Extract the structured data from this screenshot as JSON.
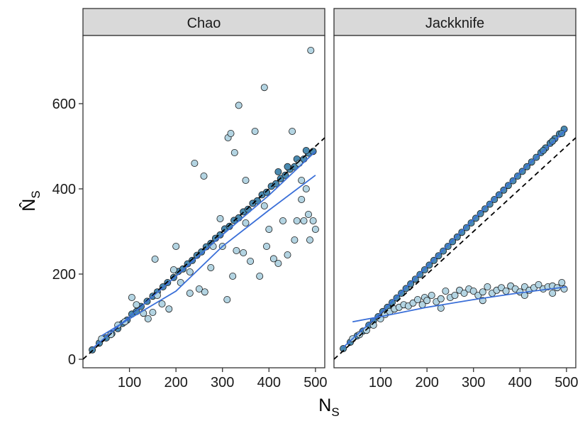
{
  "chart_data": {
    "type": "scatter",
    "panels": [
      "Chao",
      "Jackknife"
    ],
    "xlabel": "N",
    "xlabel_sub": "S",
    "ylabel": "N̂",
    "ylabel_sub": "S",
    "x_ticks": [
      100,
      200,
      300,
      400,
      500
    ],
    "y_ticks": [
      0,
      200,
      400,
      600
    ],
    "xlim": [
      0,
      520
    ],
    "ylim": [
      -20,
      760
    ],
    "reference_line": {
      "slope": 1,
      "intercept": 0,
      "style": "dashed",
      "color": "#000000"
    },
    "colors": {
      "light": "#b3d4e2",
      "dark": "#4a8ab0",
      "fit": "#3a6fd8",
      "outline": "#1a1a1a",
      "strip": "#d9d9d9"
    },
    "series": [
      {
        "panel": "Chao",
        "shade": "dark",
        "points": [
          [
            20,
            22
          ],
          [
            35,
            38
          ],
          [
            50,
            50
          ],
          [
            62,
            60
          ],
          [
            75,
            72
          ],
          [
            85,
            84
          ],
          [
            95,
            92
          ],
          [
            105,
            106
          ],
          [
            115,
            112
          ],
          [
            125,
            124
          ],
          [
            138,
            136
          ],
          [
            150,
            148
          ],
          [
            160,
            158
          ],
          [
            172,
            170
          ],
          [
            182,
            180
          ],
          [
            195,
            192
          ],
          [
            205,
            206
          ],
          [
            215,
            212
          ],
          [
            225,
            224
          ],
          [
            235,
            232
          ],
          [
            245,
            244
          ],
          [
            255,
            252
          ],
          [
            265,
            264
          ],
          [
            275,
            272
          ],
          [
            285,
            284
          ],
          [
            295,
            292
          ],
          [
            305,
            306
          ],
          [
            315,
            312
          ],
          [
            325,
            326
          ],
          [
            335,
            332
          ],
          [
            345,
            346
          ],
          [
            355,
            352
          ],
          [
            365,
            366
          ],
          [
            375,
            372
          ],
          [
            385,
            386
          ],
          [
            395,
            392
          ],
          [
            405,
            406
          ],
          [
            415,
            412
          ],
          [
            425,
            424
          ],
          [
            435,
            432
          ],
          [
            445,
            446
          ],
          [
            455,
            452
          ],
          [
            465,
            466
          ],
          [
            475,
            470
          ],
          [
            485,
            484
          ],
          [
            495,
            488
          ],
          [
            420,
            440
          ],
          [
            440,
            452
          ],
          [
            460,
            470
          ],
          [
            480,
            490
          ]
        ],
        "fit": [
          [
            20,
            25
          ],
          [
            100,
            100
          ],
          [
            200,
            195
          ],
          [
            300,
            292
          ],
          [
            400,
            385
          ],
          [
            500,
            488
          ]
        ]
      },
      {
        "panel": "Chao",
        "shade": "light",
        "points": [
          [
            40,
            48
          ],
          [
            60,
            58
          ],
          [
            75,
            80
          ],
          [
            90,
            88
          ],
          [
            105,
            145
          ],
          [
            115,
            128
          ],
          [
            130,
            108
          ],
          [
            140,
            95
          ],
          [
            150,
            110
          ],
          [
            155,
            235
          ],
          [
            170,
            130
          ],
          [
            185,
            118
          ],
          [
            195,
            210
          ],
          [
            200,
            265
          ],
          [
            210,
            180
          ],
          [
            230,
            155
          ],
          [
            240,
            460
          ],
          [
            250,
            165
          ],
          [
            260,
            430
          ],
          [
            262,
            158
          ],
          [
            275,
            215
          ],
          [
            280,
            265
          ],
          [
            295,
            330
          ],
          [
            300,
            265
          ],
          [
            310,
            140
          ],
          [
            312,
            520
          ],
          [
            318,
            530
          ],
          [
            322,
            195
          ],
          [
            326,
            485
          ],
          [
            330,
            255
          ],
          [
            335,
            596
          ],
          [
            345,
            250
          ],
          [
            350,
            320
          ],
          [
            360,
            230
          ],
          [
            370,
            535
          ],
          [
            380,
            195
          ],
          [
            390,
            638
          ],
          [
            395,
            265
          ],
          [
            400,
            305
          ],
          [
            410,
            236
          ],
          [
            420,
            225
          ],
          [
            430,
            325
          ],
          [
            440,
            245
          ],
          [
            450,
            535
          ],
          [
            455,
            280
          ],
          [
            460,
            325
          ],
          [
            465,
            460
          ],
          [
            470,
            375
          ],
          [
            475,
            325
          ],
          [
            480,
            400
          ],
          [
            485,
            340
          ],
          [
            490,
            725
          ],
          [
            495,
            325
          ],
          [
            500,
            305
          ],
          [
            488,
            280
          ],
          [
            470,
            420
          ],
          [
            350,
            420
          ],
          [
            390,
            360
          ],
          [
            230,
            205
          ],
          [
            160,
            150
          ]
        ],
        "fit": [
          [
            40,
            55
          ],
          [
            100,
            95
          ],
          [
            200,
            160
          ],
          [
            300,
            265
          ],
          [
            400,
            350
          ],
          [
            500,
            432
          ]
        ]
      },
      {
        "panel": "Jackknife",
        "shade": "dark",
        "points": [
          [
            20,
            25
          ],
          [
            35,
            40
          ],
          [
            50,
            55
          ],
          [
            62,
            66
          ],
          [
            75,
            80
          ],
          [
            85,
            90
          ],
          [
            95,
            100
          ],
          [
            105,
            112
          ],
          [
            115,
            122
          ],
          [
            125,
            133
          ],
          [
            135,
            144
          ],
          [
            145,
            155
          ],
          [
            155,
            166
          ],
          [
            165,
            177
          ],
          [
            175,
            188
          ],
          [
            185,
            199
          ],
          [
            195,
            210
          ],
          [
            205,
            221
          ],
          [
            215,
            232
          ],
          [
            225,
            243
          ],
          [
            235,
            254
          ],
          [
            245,
            265
          ],
          [
            255,
            276
          ],
          [
            265,
            287
          ],
          [
            275,
            298
          ],
          [
            285,
            309
          ],
          [
            295,
            320
          ],
          [
            305,
            331
          ],
          [
            315,
            342
          ],
          [
            325,
            353
          ],
          [
            335,
            364
          ],
          [
            345,
            375
          ],
          [
            355,
            386
          ],
          [
            365,
            397
          ],
          [
            375,
            408
          ],
          [
            385,
            419
          ],
          [
            395,
            430
          ],
          [
            405,
            441
          ],
          [
            415,
            452
          ],
          [
            425,
            463
          ],
          [
            435,
            474
          ],
          [
            445,
            485
          ],
          [
            455,
            496
          ],
          [
            465,
            507
          ],
          [
            475,
            518
          ],
          [
            485,
            529
          ],
          [
            495,
            540
          ],
          [
            490,
            530
          ],
          [
            470,
            512
          ],
          [
            450,
            490
          ]
        ],
        "fit": [
          [
            20,
            28
          ],
          [
            100,
            108
          ],
          [
            200,
            218
          ],
          [
            300,
            328
          ],
          [
            400,
            438
          ],
          [
            500,
            540
          ]
        ]
      },
      {
        "panel": "Jackknife",
        "shade": "light",
        "points": [
          [
            40,
            48
          ],
          [
            55,
            58
          ],
          [
            70,
            68
          ],
          [
            85,
            80
          ],
          [
            100,
            95
          ],
          [
            110,
            105
          ],
          [
            120,
            112
          ],
          [
            130,
            118
          ],
          [
            140,
            122
          ],
          [
            150,
            128
          ],
          [
            160,
            125
          ],
          [
            170,
            132
          ],
          [
            180,
            140
          ],
          [
            190,
            128
          ],
          [
            195,
            145
          ],
          [
            200,
            138
          ],
          [
            210,
            150
          ],
          [
            220,
            135
          ],
          [
            230,
            142
          ],
          [
            240,
            160
          ],
          [
            250,
            145
          ],
          [
            260,
            150
          ],
          [
            270,
            162
          ],
          [
            280,
            155
          ],
          [
            290,
            165
          ],
          [
            300,
            160
          ],
          [
            310,
            150
          ],
          [
            320,
            158
          ],
          [
            330,
            170
          ],
          [
            340,
            155
          ],
          [
            350,
            162
          ],
          [
            360,
            168
          ],
          [
            370,
            160
          ],
          [
            380,
            172
          ],
          [
            390,
            165
          ],
          [
            400,
            158
          ],
          [
            410,
            170
          ],
          [
            420,
            162
          ],
          [
            430,
            168
          ],
          [
            440,
            175
          ],
          [
            450,
            165
          ],
          [
            460,
            170
          ],
          [
            470,
            172
          ],
          [
            480,
            168
          ],
          [
            490,
            180
          ],
          [
            495,
            165
          ],
          [
            230,
            120
          ],
          [
            320,
            138
          ],
          [
            410,
            150
          ],
          [
            470,
            155
          ]
        ],
        "fit": [
          [
            40,
            88
          ],
          [
            100,
            100
          ],
          [
            200,
            122
          ],
          [
            300,
            140
          ],
          [
            400,
            156
          ],
          [
            500,
            170
          ]
        ]
      }
    ]
  }
}
